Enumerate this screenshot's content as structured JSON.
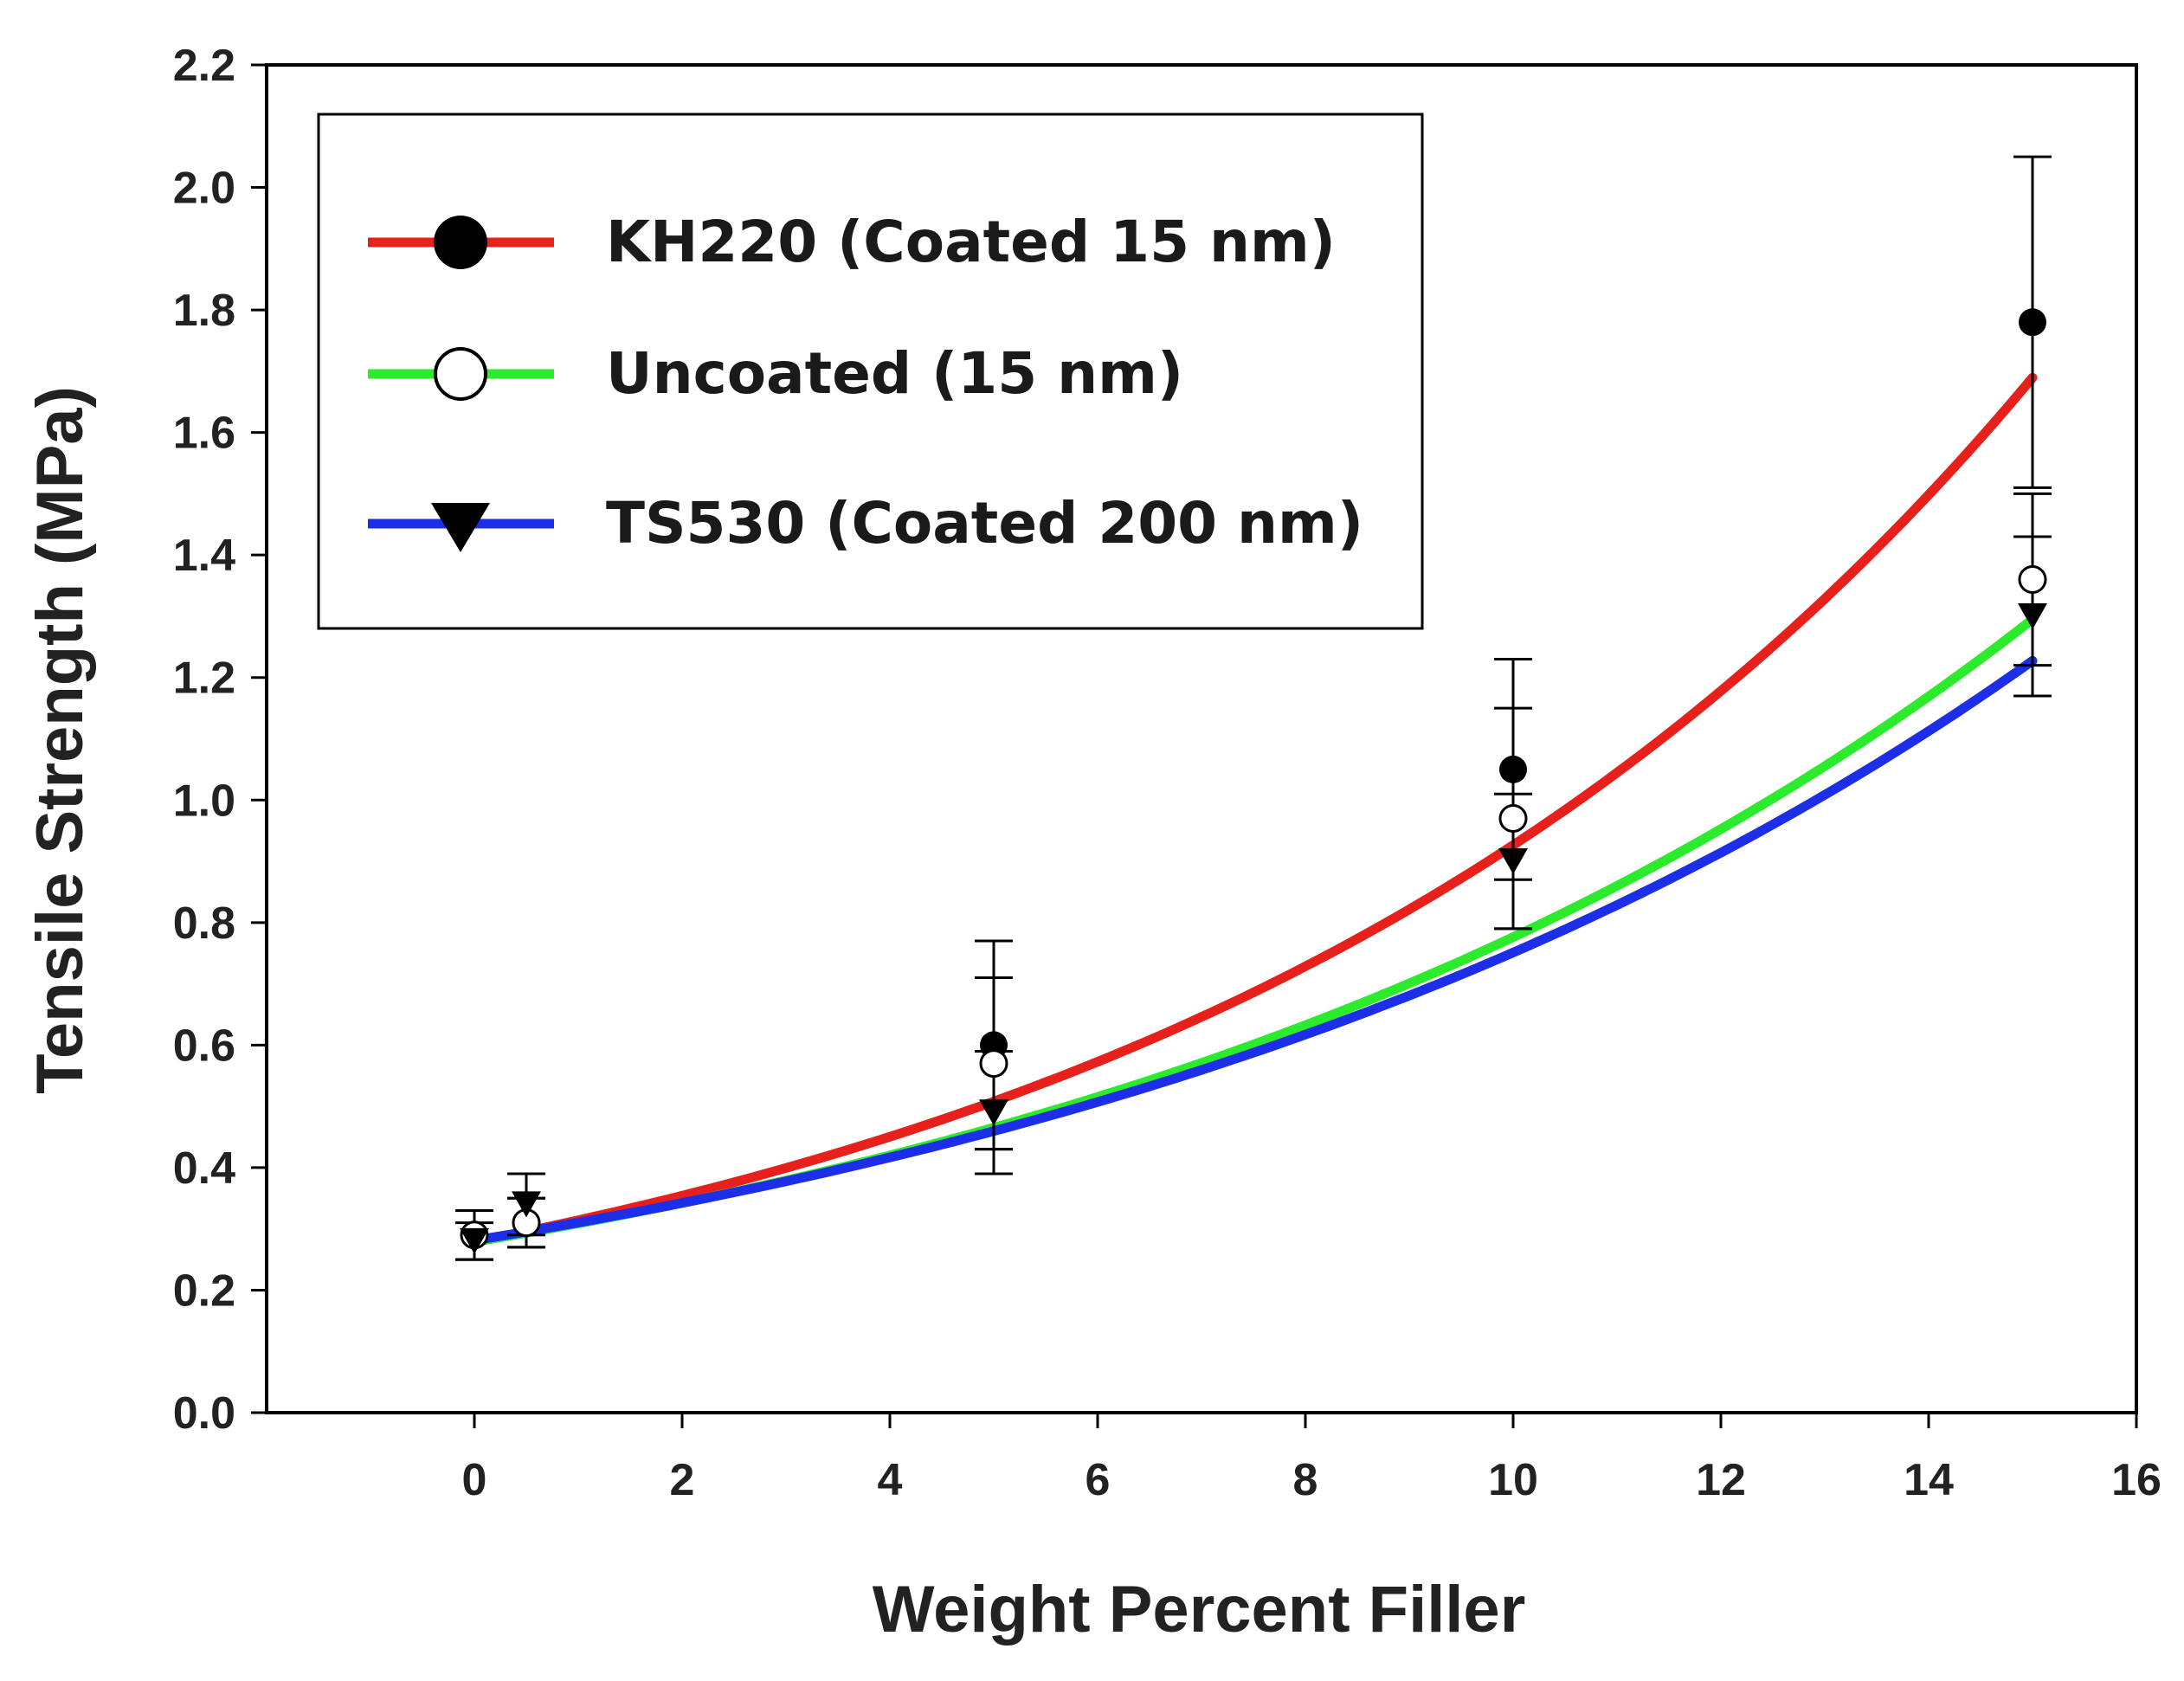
{
  "chart_data": {
    "type": "scatter",
    "title": "",
    "xlabel": "Weight Percent Filler",
    "ylabel": "Tensile Strength (MPa)",
    "xlim": [
      -2,
      16
    ],
    "ylim": [
      0.0,
      2.2
    ],
    "xticks": [
      0,
      2,
      4,
      6,
      8,
      10,
      12,
      14,
      16
    ],
    "xtick_labels": [
      "0",
      "2",
      "4",
      "6",
      "8",
      "10",
      "12",
      "14",
      "16"
    ],
    "yticks": [
      0.0,
      0.2,
      0.4,
      0.6,
      0.8,
      1.0,
      1.2,
      1.4,
      1.6,
      1.8,
      2.0,
      2.2
    ],
    "ytick_labels": [
      "0.0",
      "0.2",
      "0.4",
      "0.6",
      "0.8",
      "1.0",
      "1.2",
      "1.4",
      "1.6",
      "1.8",
      "2.0",
      "2.2"
    ],
    "grid": false,
    "legend_position": "top-left",
    "series": [
      {
        "name": "KH220 (Coated 15 nm)",
        "color": "#e8201c",
        "marker": "filled-circle",
        "points": [
          {
            "x": 0,
            "y": 0.29,
            "err": 0.04
          },
          {
            "x": 0.5,
            "y": 0.31,
            "err": 0.04
          },
          {
            "x": 5,
            "y": 0.6,
            "err": 0.17
          },
          {
            "x": 10,
            "y": 1.05,
            "err": 0.18
          },
          {
            "x": 15,
            "y": 1.78,
            "err": 0.27
          }
        ],
        "fit": [
          0.294,
          1.1277,
          0.45
        ]
      },
      {
        "name": "Uncoated (15 nm)",
        "color": "#2cea2c",
        "marker": "open-circle",
        "points": [
          {
            "x": 0,
            "y": 0.29,
            "err": 0.04
          },
          {
            "x": 0.5,
            "y": 0.31,
            "err": 0.04
          },
          {
            "x": 5,
            "y": 0.57,
            "err": 0.14
          },
          {
            "x": 10,
            "y": 0.97,
            "err": 0.18
          },
          {
            "x": 15,
            "y": 1.36,
            "err": 0.14
          }
        ],
        "fit": [
          0.292,
          1.1078,
          0.45
        ]
      },
      {
        "name": "TS530 (Coated 200 nm)",
        "color": "#1c2ee8",
        "marker": "down-triangle",
        "points": [
          {
            "x": 0,
            "y": 0.28,
            "err": 0.03
          },
          {
            "x": 0.5,
            "y": 0.34,
            "err": 0.05
          },
          {
            "x": 5,
            "y": 0.49,
            "err": 0.1
          },
          {
            "x": 10,
            "y": 0.9,
            "err": 0.11
          },
          {
            "x": 15,
            "y": 1.3,
            "err": 0.13
          }
        ],
        "fit": [
          0.294,
          1.1032,
          0.45
        ]
      }
    ]
  }
}
